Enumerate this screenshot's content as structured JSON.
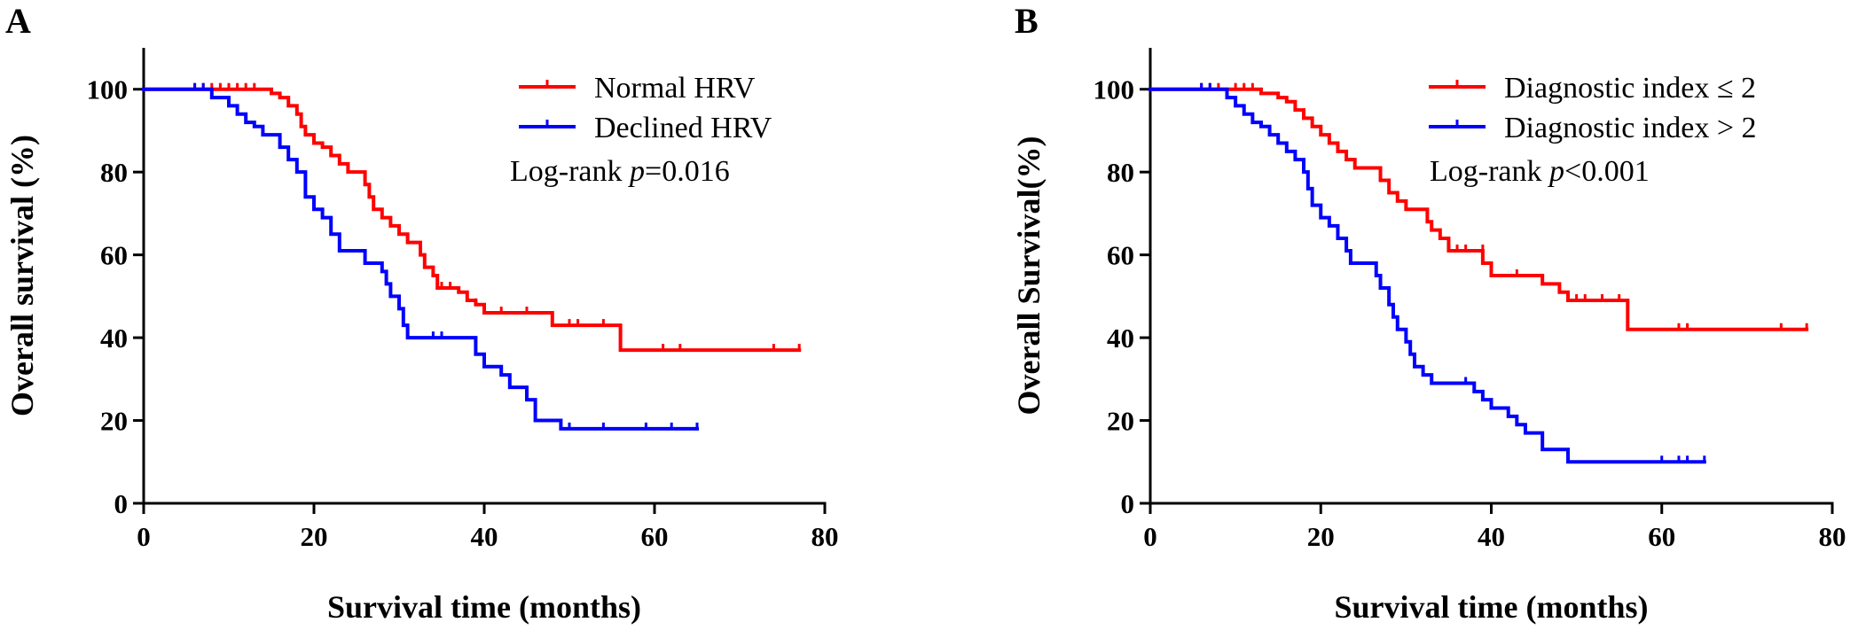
{
  "chart_data": [
    {
      "panel_label": "A",
      "type": "line",
      "subtype": "kaplan-meier",
      "title": "",
      "xlabel": "Survival time (months)",
      "ylabel": "Overall survival (%)",
      "xlim": [
        0,
        80
      ],
      "ylim": [
        0,
        110
      ],
      "xticks": [
        0,
        20,
        40,
        60,
        80
      ],
      "yticks": [
        0,
        20,
        40,
        60,
        80,
        100
      ],
      "legend_position": "top-right",
      "annotation": {
        "prefix": "Log-rank ",
        "p_symbol": "p",
        "relation": "=",
        "value": "0.016"
      },
      "series": [
        {
          "name": "Normal HRV",
          "color": "#ff0000",
          "steps": [
            [
              0,
              100
            ],
            [
              14,
              100
            ],
            [
              15,
              99
            ],
            [
              16,
              98
            ],
            [
              17,
              96
            ],
            [
              18,
              94
            ],
            [
              18.5,
              91
            ],
            [
              19,
              89
            ],
            [
              20,
              87
            ],
            [
              21,
              86
            ],
            [
              22,
              84
            ],
            [
              23,
              82
            ],
            [
              24,
              80
            ],
            [
              26,
              77
            ],
            [
              26.5,
              74
            ],
            [
              27,
              71
            ],
            [
              28,
              69
            ],
            [
              29,
              67
            ],
            [
              30,
              65
            ],
            [
              31,
              63
            ],
            [
              32,
              63
            ],
            [
              32.5,
              60
            ],
            [
              33,
              57
            ],
            [
              34,
              55
            ],
            [
              34.5,
              52
            ],
            [
              37,
              51
            ],
            [
              38,
              49
            ],
            [
              39,
              48
            ],
            [
              40,
              46
            ],
            [
              47,
              46
            ],
            [
              48,
              43
            ],
            [
              56,
              43
            ],
            [
              56,
              37
            ],
            [
              77,
              37
            ]
          ],
          "censored": [
            [
              6,
              100
            ],
            [
              7,
              100
            ],
            [
              8,
              100
            ],
            [
              9,
              100
            ],
            [
              10,
              100
            ],
            [
              11,
              100
            ],
            [
              12,
              100
            ],
            [
              13,
              100
            ],
            [
              35,
              52
            ],
            [
              36,
              52
            ],
            [
              39,
              48
            ],
            [
              42,
              46
            ],
            [
              45,
              46
            ],
            [
              50,
              43
            ],
            [
              51,
              43
            ],
            [
              54,
              43
            ],
            [
              61,
              37
            ],
            [
              63,
              37
            ],
            [
              74,
              37
            ],
            [
              77,
              37
            ]
          ]
        },
        {
          "name": "Declined HRV",
          "color": "#0000ff",
          "steps": [
            [
              0,
              100
            ],
            [
              8,
              100
            ],
            [
              8,
              98
            ],
            [
              10,
              96
            ],
            [
              11,
              94
            ],
            [
              12,
              92
            ],
            [
              13,
              91
            ],
            [
              14,
              89
            ],
            [
              16,
              86
            ],
            [
              17,
              83
            ],
            [
              18,
              80
            ],
            [
              19,
              74
            ],
            [
              20,
              71
            ],
            [
              21,
              69
            ],
            [
              22,
              65
            ],
            [
              23,
              61
            ],
            [
              26,
              61
            ],
            [
              26,
              58
            ],
            [
              28,
              56
            ],
            [
              28.5,
              53
            ],
            [
              29,
              50
            ],
            [
              30,
              47
            ],
            [
              30.5,
              43
            ],
            [
              31,
              40
            ],
            [
              38,
              40
            ],
            [
              39,
              36
            ],
            [
              40,
              33
            ],
            [
              42,
              31
            ],
            [
              43,
              28
            ],
            [
              45,
              25
            ],
            [
              46,
              20
            ],
            [
              49,
              20
            ],
            [
              49,
              18
            ],
            [
              65,
              18
            ]
          ],
          "censored": [
            [
              6,
              100
            ],
            [
              7,
              100
            ],
            [
              34,
              40
            ],
            [
              35,
              40
            ],
            [
              50,
              18
            ],
            [
              54,
              18
            ],
            [
              59,
              18
            ],
            [
              62,
              18
            ],
            [
              65,
              18
            ]
          ]
        }
      ]
    },
    {
      "panel_label": "B",
      "type": "line",
      "subtype": "kaplan-meier",
      "title": "",
      "xlabel": "Survival time (months)",
      "ylabel": "Overall Survival(%)",
      "xlim": [
        0,
        80
      ],
      "ylim": [
        0,
        110
      ],
      "xticks": [
        0,
        20,
        40,
        60,
        80
      ],
      "yticks": [
        0,
        20,
        40,
        60,
        80,
        100
      ],
      "legend_position": "top-right",
      "annotation": {
        "prefix": "Log-rank ",
        "p_symbol": "p",
        "relation": "<",
        "value": "0.001"
      },
      "series": [
        {
          "name": "Diagnostic index ≤ 2",
          "color": "#ff0000",
          "steps": [
            [
              0,
              100
            ],
            [
              13,
              100
            ],
            [
              13,
              99
            ],
            [
              15,
              98
            ],
            [
              16,
              97
            ],
            [
              17,
              95
            ],
            [
              18,
              93
            ],
            [
              19,
              91
            ],
            [
              20,
              89
            ],
            [
              21,
              87
            ],
            [
              22,
              85
            ],
            [
              23,
              83
            ],
            [
              24,
              81
            ],
            [
              26,
              81
            ],
            [
              27,
              78
            ],
            [
              28,
              75
            ],
            [
              29,
              73
            ],
            [
              30,
              71
            ],
            [
              32,
              71
            ],
            [
              32.5,
              68
            ],
            [
              33,
              66
            ],
            [
              34,
              64
            ],
            [
              35,
              61
            ],
            [
              39,
              61
            ],
            [
              39,
              58
            ],
            [
              40,
              55
            ],
            [
              45,
              55
            ],
            [
              46,
              53
            ],
            [
              48,
              51
            ],
            [
              49,
              49
            ],
            [
              56,
              49
            ],
            [
              56,
              42
            ],
            [
              77,
              42
            ]
          ],
          "censored": [
            [
              6,
              100
            ],
            [
              7,
              100
            ],
            [
              8,
              100
            ],
            [
              10,
              100
            ],
            [
              11,
              100
            ],
            [
              12,
              100
            ],
            [
              36,
              61
            ],
            [
              37,
              61
            ],
            [
              39,
              61
            ],
            [
              43,
              55
            ],
            [
              50,
              49
            ],
            [
              51,
              49
            ],
            [
              53,
              49
            ],
            [
              55,
              49
            ],
            [
              62,
              42
            ],
            [
              63,
              42
            ],
            [
              74,
              42
            ],
            [
              77,
              42
            ]
          ]
        },
        {
          "name": "Diagnostic index > 2",
          "color": "#0000ff",
          "steps": [
            [
              0,
              100
            ],
            [
              8,
              100
            ],
            [
              9,
              98
            ],
            [
              10,
              96
            ],
            [
              11,
              94
            ],
            [
              12,
              92
            ],
            [
              13,
              91
            ],
            [
              14,
              89
            ],
            [
              15,
              87
            ],
            [
              16,
              85
            ],
            [
              17,
              83
            ],
            [
              18,
              80
            ],
            [
              18.5,
              76
            ],
            [
              19,
              72
            ],
            [
              20,
              69
            ],
            [
              21,
              67
            ],
            [
              22,
              64
            ],
            [
              23,
              61
            ],
            [
              23.5,
              58
            ],
            [
              26,
              58
            ],
            [
              26.5,
              55
            ],
            [
              27,
              52
            ],
            [
              28,
              48
            ],
            [
              28.5,
              45
            ],
            [
              29,
              42
            ],
            [
              30,
              39
            ],
            [
              30.5,
              36
            ],
            [
              31,
              33
            ],
            [
              32,
              31
            ],
            [
              33,
              29
            ],
            [
              37,
              29
            ],
            [
              38,
              27
            ],
            [
              39,
              25
            ],
            [
              40,
              23
            ],
            [
              42,
              21
            ],
            [
              43,
              19
            ],
            [
              44,
              17
            ],
            [
              46,
              17
            ],
            [
              46,
              13
            ],
            [
              49,
              13
            ],
            [
              49,
              10
            ],
            [
              65,
              10
            ]
          ],
          "censored": [
            [
              6,
              100
            ],
            [
              7,
              100
            ],
            [
              37,
              29
            ],
            [
              60,
              10
            ],
            [
              62,
              10
            ],
            [
              63,
              10
            ],
            [
              65,
              10
            ]
          ]
        }
      ]
    }
  ]
}
